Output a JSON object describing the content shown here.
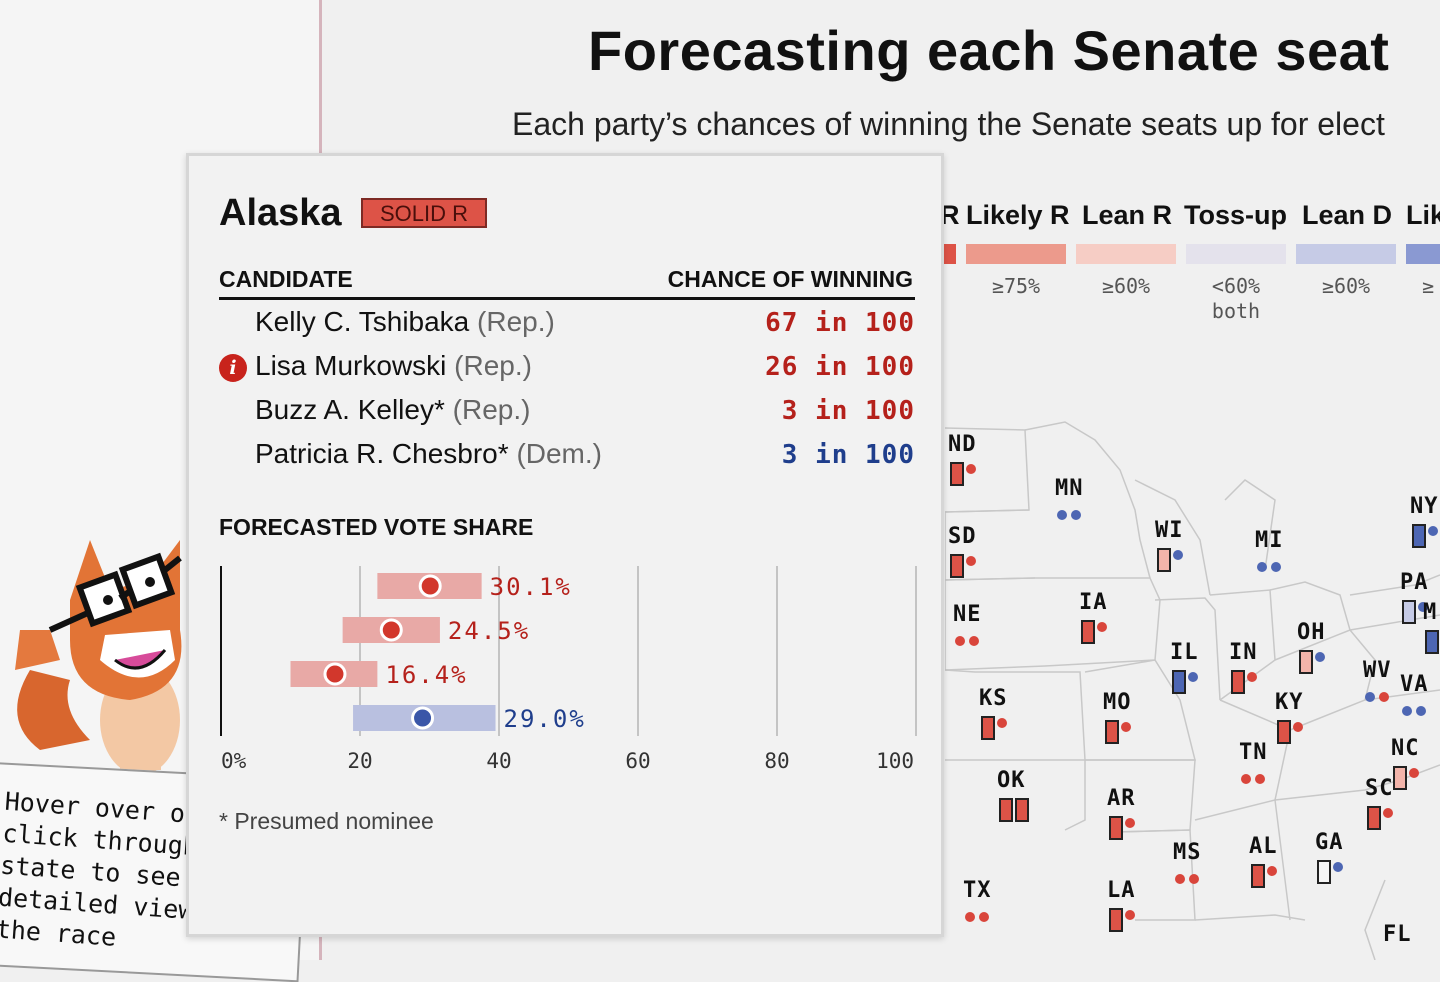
{
  "header": {
    "title": "Forecasting each Senate seat",
    "subtitle": "Each party’s chances of winning the Senate seats up for elect"
  },
  "legend": [
    {
      "label": "R",
      "color": "#dd5347",
      "threshold": ""
    },
    {
      "label": "Likely R",
      "color": "#ec9a8c",
      "threshold": "≥75%"
    },
    {
      "label": "Lean R",
      "color": "#f6cdc5",
      "threshold": "≥60%"
    },
    {
      "label": "Toss-up",
      "color": "#e4e2ec",
      "threshold": "<60% both"
    },
    {
      "label": "Lean D",
      "color": "#c6cbe6",
      "threshold": "≥60%"
    },
    {
      "label": "Lik",
      "color": "#8a99d2",
      "threshold": "≥"
    }
  ],
  "colors": {
    "rep": "#b5211b",
    "dem": "#1f3e8c",
    "solid_r": "#dd5347",
    "bar_r": "#e8a9a6",
    "bar_d": "#b9c0e0"
  },
  "tooltip": {
    "state": "Alaska",
    "rating": "SOLID R",
    "col_candidate": "CANDIDATE",
    "col_chance": "CHANCE OF WINNING",
    "candidates": [
      {
        "name": "Kelly C. Tshibaka",
        "party": "(Rep.)",
        "chance": "67 in 100",
        "side": "rep",
        "info": false
      },
      {
        "name": "Lisa Murkowski",
        "party": "(Rep.)",
        "chance": "26 in 100",
        "side": "rep",
        "info": true
      },
      {
        "name": "Buzz A. Kelley*",
        "party": "(Rep.)",
        "chance": "3 in 100",
        "side": "rep",
        "info": false
      },
      {
        "name": "Patricia R. Chesbro*",
        "party": "(Dem.)",
        "chance": "3 in 100",
        "side": "dem",
        "info": false
      }
    ],
    "info_icon": "i",
    "vote_share_title": "FORECASTED VOTE SHARE",
    "footnote": "* Presumed nominee"
  },
  "chart_data": {
    "type": "bar",
    "orientation": "horizontal",
    "xlim": [
      0,
      100
    ],
    "x_ticks": [
      "0%",
      "20",
      "40",
      "60",
      "80",
      "100"
    ],
    "x_tick_values": [
      0,
      20,
      40,
      60,
      80,
      100
    ],
    "series": [
      {
        "point": 30.1,
        "low": 22.5,
        "high": 37.5,
        "label": "30.1%",
        "side": "rep"
      },
      {
        "point": 24.5,
        "low": 17.5,
        "high": 31.5,
        "label": "24.5%",
        "side": "rep"
      },
      {
        "point": 16.4,
        "low": 10,
        "high": 22.5,
        "label": "16.4%",
        "side": "rep"
      },
      {
        "point": 29.0,
        "low": 19,
        "high": 39.5,
        "label": "29.0%",
        "side": "dem"
      }
    ]
  },
  "hint": {
    "lines": [
      "Hover over or",
      "click through a",
      "state to see a",
      "detailed view of",
      "the race"
    ]
  },
  "map_states": [
    {
      "abbr": "ND",
      "icons": [
        "r-bar",
        "r-dot"
      ]
    },
    {
      "abbr": "MN",
      "icons": [
        "d-dot",
        "d-dot"
      ]
    },
    {
      "abbr": "SD",
      "icons": [
        "r-bar",
        "r-dot"
      ]
    },
    {
      "abbr": "WI",
      "icons": [
        "lr-bar",
        "d-dot"
      ]
    },
    {
      "abbr": "MI",
      "icons": [
        "d-dot",
        "d-dot"
      ]
    },
    {
      "abbr": "NY",
      "icons": [
        "d-bar",
        "d-dot"
      ]
    },
    {
      "abbr": "NE",
      "icons": [
        "r-dot",
        "r-dot"
      ]
    },
    {
      "abbr": "IA",
      "icons": [
        "r-bar",
        "r-dot"
      ]
    },
    {
      "abbr": "PA",
      "icons": [
        "ld-bar",
        "d-dot"
      ]
    },
    {
      "abbr": "M",
      "icons": [
        "d-bar"
      ]
    },
    {
      "abbr": "OH",
      "icons": [
        "lr-bar",
        "d-dot"
      ]
    },
    {
      "abbr": "IL",
      "icons": [
        "d-bar",
        "d-dot"
      ]
    },
    {
      "abbr": "IN",
      "icons": [
        "r-bar",
        "r-dot"
      ]
    },
    {
      "abbr": "KS",
      "icons": [
        "r-bar",
        "r-dot"
      ]
    },
    {
      "abbr": "MO",
      "icons": [
        "r-bar",
        "r-dot"
      ]
    },
    {
      "abbr": "WV",
      "icons": [
        "d-dot",
        "r-dot"
      ]
    },
    {
      "abbr": "VA",
      "icons": [
        "d-dot",
        "d-dot"
      ]
    },
    {
      "abbr": "KY",
      "icons": [
        "r-bar",
        "r-dot"
      ]
    },
    {
      "abbr": "TN",
      "icons": [
        "r-dot",
        "r-dot"
      ]
    },
    {
      "abbr": "NC",
      "icons": [
        "lr-bar",
        "r-dot"
      ]
    },
    {
      "abbr": "OK",
      "icons": [
        "r-bar",
        "r-bar"
      ]
    },
    {
      "abbr": "AR",
      "icons": [
        "r-bar",
        "r-dot"
      ]
    },
    {
      "abbr": "SC",
      "icons": [
        "r-bar",
        "r-dot"
      ]
    },
    {
      "abbr": "MS",
      "icons": [
        "r-dot",
        "r-dot"
      ]
    },
    {
      "abbr": "AL",
      "icons": [
        "r-bar",
        "r-dot"
      ]
    },
    {
      "abbr": "GA",
      "icons": [
        "t-bar",
        "d-dot"
      ]
    },
    {
      "abbr": "TX",
      "icons": [
        "r-dot",
        "r-dot"
      ]
    },
    {
      "abbr": "LA",
      "icons": [
        "r-bar",
        "r-dot"
      ]
    },
    {
      "abbr": "FL",
      "icons": []
    }
  ]
}
